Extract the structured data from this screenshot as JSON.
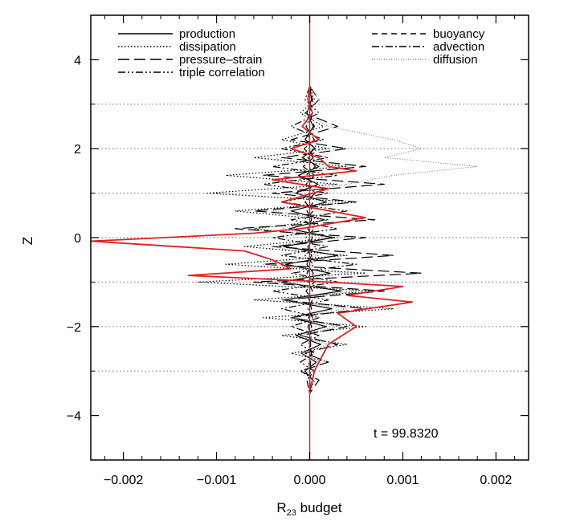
{
  "chart_data": {
    "type": "line",
    "orientation": "profile",
    "xlabel_main": "R",
    "xlabel_sub": "23",
    "xlabel_rest": " budget",
    "ylabel": "Z",
    "xlim": [
      -0.00235,
      0.00235
    ],
    "ylim": [
      -5,
      5
    ],
    "x_ticks": [
      -0.002,
      -0.001,
      0.0,
      0.001,
      0.002
    ],
    "x_tick_labels": [
      "−0.002",
      "−0.001",
      "0.000",
      "0.001",
      "0.002"
    ],
    "y_ticks": [
      -4,
      -2,
      0,
      2,
      4
    ],
    "y_tick_labels": [
      "−4",
      "−2",
      "0",
      "2",
      "4"
    ],
    "reference_lines_z": [
      -3,
      -2,
      -1,
      0,
      1,
      2,
      3
    ],
    "annotation": "t = 99.8320",
    "legend_placement": "top",
    "series": [
      {
        "name": "production",
        "color": "#000000",
        "dash": "solid",
        "x": [
          0.0,
          2e-05,
          -3e-05,
          4e-05,
          -5e-05,
          6e-05,
          -8e-05,
          0.0001,
          -0.00012,
          9e-05,
          -0.00015,
          0.00018,
          -0.0002,
          0.00016,
          -0.00022,
          0.00025,
          -0.00028,
          0.0003,
          -0.00026,
          0.00022,
          -0.0003,
          0.00034,
          -0.00028,
          0.00024,
          -0.0002,
          0.00018,
          -0.00015,
          0.00012,
          -9e-05,
          7e-05,
          -5e-05,
          3e-05,
          0.0
        ],
        "z": [
          3.4,
          3.1,
          2.8,
          2.5,
          2.2,
          2.0,
          1.8,
          1.6,
          1.4,
          1.2,
          1.0,
          0.8,
          0.6,
          0.4,
          0.2,
          0.0,
          -0.2,
          -0.4,
          -0.6,
          -0.8,
          -1.0,
          -1.2,
          -1.4,
          -1.6,
          -1.8,
          -2.0,
          -2.2,
          -2.4,
          -2.6,
          -2.8,
          -3.0,
          -3.2,
          -3.5
        ]
      },
      {
        "name": "dissipation",
        "color": "#000000",
        "dash": "dotted",
        "x": [
          0.0,
          5e-05,
          -0.0001,
          0.00015,
          -0.0003,
          0.0002,
          -0.0006,
          0.0004,
          -0.0009,
          0.0003,
          -0.0011,
          0.0005,
          -0.0008,
          0.0002,
          -0.0006,
          0.0003,
          -0.0007,
          0.0004,
          -0.0009,
          0.0006,
          -0.0012,
          0.0007,
          -0.0006,
          0.0009,
          -0.0005,
          0.0006,
          -0.0003,
          0.0004,
          -0.0002,
          0.0002,
          -0.0001,
          5e-05,
          0.0
        ],
        "z": [
          3.4,
          3.1,
          2.8,
          2.5,
          2.2,
          2.0,
          1.8,
          1.6,
          1.4,
          1.2,
          1.0,
          0.8,
          0.6,
          0.4,
          0.2,
          0.0,
          -0.2,
          -0.4,
          -0.6,
          -0.8,
          -1.0,
          -1.2,
          -1.4,
          -1.6,
          -1.8,
          -2.0,
          -2.2,
          -2.4,
          -2.6,
          -2.8,
          -3.0,
          -3.2,
          -3.5
        ]
      },
      {
        "name": "pressure–strain",
        "color": "#000000",
        "dash": "longdash",
        "x": [
          0.0,
          0.0001,
          -5e-05,
          0.0003,
          -0.0002,
          0.0004,
          -0.0003,
          0.0006,
          -0.0005,
          0.0008,
          -0.0004,
          0.0005,
          -0.0006,
          0.0007,
          -0.0008,
          0.0006,
          -0.0004,
          0.0009,
          -0.0005,
          0.0012,
          -0.0006,
          0.0008,
          -0.0003,
          0.0006,
          -0.0002,
          0.0004,
          -0.0001,
          0.0003,
          -5e-05,
          0.0002,
          -0.0001,
          0.0001,
          0.0
        ],
        "z": [
          3.4,
          3.1,
          2.8,
          2.5,
          2.2,
          2.0,
          1.8,
          1.6,
          1.4,
          1.2,
          1.0,
          0.8,
          0.6,
          0.4,
          0.2,
          0.0,
          -0.2,
          -0.4,
          -0.6,
          -0.8,
          -1.0,
          -1.2,
          -1.4,
          -1.6,
          -1.8,
          -2.0,
          -2.2,
          -2.4,
          -2.6,
          -2.8,
          -3.0,
          -3.2,
          -3.5
        ]
      },
      {
        "name": "triple correlation",
        "color": "#000000",
        "dash": "dashdotdot",
        "x": [
          0.0,
          -5e-05,
          0.0001,
          -0.0002,
          0.00015,
          -0.0003,
          0.0002,
          -0.0004,
          0.0003,
          -0.0005,
          0.0002,
          -0.0003,
          0.0004,
          -0.0002,
          0.0003,
          -0.0004,
          0.0002,
          -0.0003,
          0.0005,
          -0.0002,
          0.0003,
          -0.0004,
          0.0002,
          -0.0003,
          0.0001,
          -0.0002,
          0.0001,
          -0.0001,
          5e-05,
          -0.0001,
          5e-05,
          -3e-05,
          0.0
        ],
        "z": [
          3.4,
          3.1,
          2.8,
          2.5,
          2.2,
          2.0,
          1.8,
          1.6,
          1.4,
          1.2,
          1.0,
          0.8,
          0.6,
          0.4,
          0.2,
          0.0,
          -0.2,
          -0.4,
          -0.6,
          -0.8,
          -1.0,
          -1.2,
          -1.4,
          -1.6,
          -1.8,
          -2.0,
          -2.2,
          -2.4,
          -2.6,
          -2.8,
          -3.0,
          -3.2,
          -3.5
        ]
      },
      {
        "name": "buoyancy",
        "color": "#000000",
        "dash": "dashed",
        "x": [
          0.0,
          3e-05,
          0.0,
          5e-05,
          -3e-05,
          4e-05,
          -2e-05,
          6e-05,
          -4e-05,
          3e-05,
          -2e-05,
          4e-05,
          -3e-05,
          2e-05,
          -2e-05,
          3e-05,
          -2e-05,
          2e-05,
          -3e-05,
          4e-05,
          -2e-05,
          3e-05,
          -1e-05,
          2e-05,
          -1e-05,
          2e-05,
          0.0,
          1e-05,
          0.0,
          1e-05,
          0.0,
          0.0,
          0.0
        ],
        "z": [
          3.4,
          3.1,
          2.8,
          2.5,
          2.2,
          2.0,
          1.8,
          1.6,
          1.4,
          1.2,
          1.0,
          0.8,
          0.6,
          0.4,
          0.2,
          0.0,
          -0.2,
          -0.4,
          -0.6,
          -0.8,
          -1.0,
          -1.2,
          -1.4,
          -1.6,
          -1.8,
          -2.0,
          -2.2,
          -2.4,
          -2.6,
          -2.8,
          -3.0,
          -3.2,
          -3.5
        ]
      },
      {
        "name": "advection",
        "color": "#000000",
        "dash": "dashdot",
        "x": [
          0.0,
          -2e-05,
          3e-05,
          -4e-05,
          5e-05,
          -6e-05,
          4e-05,
          -7e-05,
          5e-05,
          -4e-05,
          6e-05,
          -5e-05,
          4e-05,
          -6e-05,
          5e-05,
          -4e-05,
          6e-05,
          -5e-05,
          4e-05,
          -3e-05,
          5e-05,
          -4e-05,
          3e-05,
          -2e-05,
          3e-05,
          -2e-05,
          2e-05,
          -1e-05,
          2e-05,
          -1e-05,
          1e-05,
          0.0,
          0.0
        ],
        "z": [
          3.4,
          3.1,
          2.8,
          2.5,
          2.2,
          2.0,
          1.8,
          1.6,
          1.4,
          1.2,
          1.0,
          0.8,
          0.6,
          0.4,
          0.2,
          0.0,
          -0.2,
          -0.4,
          -0.6,
          -0.8,
          -1.0,
          -1.2,
          -1.4,
          -1.6,
          -1.8,
          -2.0,
          -2.2,
          -2.4,
          -2.6,
          -2.8,
          -3.0,
          -3.2,
          -3.5
        ]
      },
      {
        "name": "diffusion",
        "color": "#888888",
        "dash": "finedot",
        "x": [
          0.0,
          0.0001,
          -5e-05,
          0.0002,
          0.0009,
          0.0012,
          0.0008,
          0.0018,
          0.0009,
          0.0004,
          -0.0002,
          0.0003,
          -0.0004,
          0.0002,
          -0.0003,
          0.0002,
          -0.0004,
          0.0001,
          -0.0005,
          0.0004,
          -0.0004,
          0.0005,
          -0.0003,
          0.0004,
          -0.0002,
          0.0003,
          -0.0001,
          0.0002,
          -0.0001,
          0.0001,
          -5e-05,
          5e-05,
          0.0
        ],
        "z": [
          3.4,
          3.1,
          2.8,
          2.5,
          2.2,
          2.0,
          1.8,
          1.6,
          1.4,
          1.2,
          1.0,
          0.8,
          0.6,
          0.4,
          0.2,
          0.0,
          -0.2,
          -0.4,
          -0.6,
          -0.8,
          -1.0,
          -1.2,
          -1.4,
          -1.6,
          -1.8,
          -2.0,
          -2.2,
          -2.4,
          -2.6,
          -2.8,
          -3.0,
          -3.2,
          -3.5
        ]
      },
      {
        "color": "#e02020",
        "dash": "solid",
        "x": [
          0.0,
          -2e-05,
          3e-05,
          -8e-05,
          0.0001,
          -0.0002,
          0.0001,
          0.0002,
          0.0005,
          -0.0004,
          0.0002,
          -0.0003,
          0.0006,
          -0.0001,
          -0.0006,
          -0.00235,
          -0.0007,
          -0.0004,
          -0.0002,
          -0.0013,
          0.0002,
          0.001,
          0.0004,
          0.0011,
          0.0003,
          0.0005,
          0.0002,
          0.00015,
          0.0001,
          5e-05,
          3e-05,
          0.0,
          0.0
        ],
        "z": [
          3.4,
          3.1,
          2.8,
          2.5,
          2.2,
          2.0,
          1.8,
          1.6,
          1.5,
          1.3,
          1.1,
          0.8,
          0.45,
          0.2,
          0.1,
          -0.08,
          -0.3,
          -0.5,
          -0.7,
          -0.85,
          -1.0,
          -1.1,
          -1.3,
          -1.45,
          -1.7,
          -2.0,
          -2.4,
          -2.6,
          -2.8,
          -3.0,
          -3.2,
          -3.4,
          -3.5
        ]
      }
    ]
  }
}
